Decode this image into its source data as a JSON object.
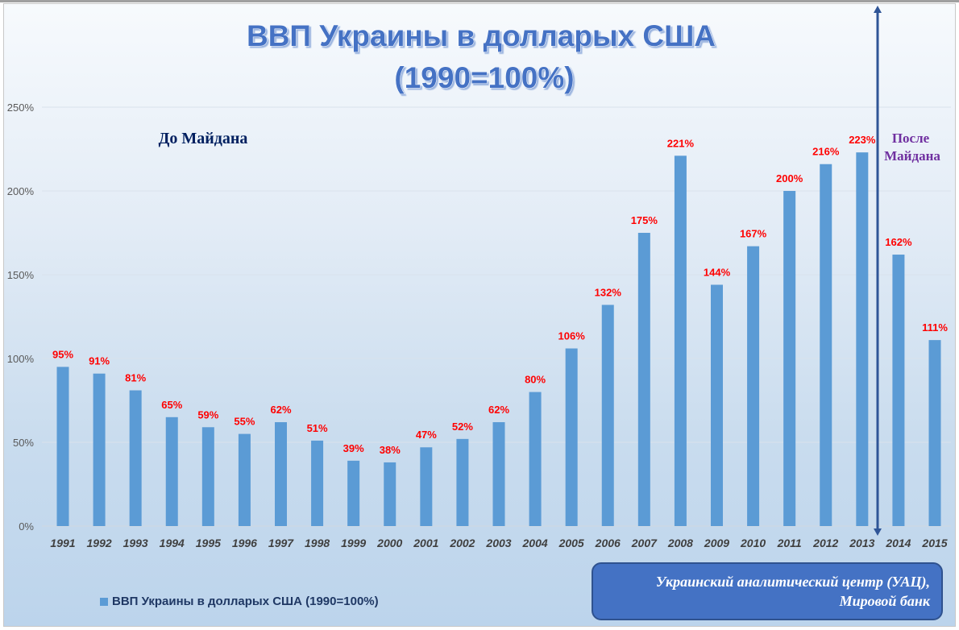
{
  "chart_data": {
    "type": "bar",
    "title": [
      "ВВП Украины в долларых США",
      "(1990=100%)"
    ],
    "categories": [
      "1991",
      "1992",
      "1993",
      "1994",
      "1995",
      "1996",
      "1997",
      "1998",
      "1999",
      "2000",
      "2001",
      "2002",
      "2003",
      "2004",
      "2005",
      "2006",
      "2007",
      "2008",
      "2009",
      "2010",
      "2011",
      "2012",
      "2013",
      "2014",
      "2015"
    ],
    "series": [
      {
        "name": "ВВП Украины в долларых США (1990=100%)",
        "values": [
          95,
          91,
          81,
          65,
          59,
          55,
          62,
          51,
          39,
          38,
          47,
          52,
          62,
          80,
          106,
          132,
          175,
          221,
          144,
          167,
          200,
          216,
          223,
          162,
          111
        ]
      }
    ],
    "data_labels": [
      "95%",
      "91%",
      "81%",
      "65%",
      "59%",
      "55%",
      "62%",
      "51%",
      "39%",
      "38%",
      "47%",
      "52%",
      "62%",
      "80%",
      "106%",
      "132%",
      "175%",
      "221%",
      "144%",
      "167%",
      "200%",
      "216%",
      "223%",
      "162%",
      "111%"
    ],
    "yticks": [
      "0%",
      "50%",
      "100%",
      "150%",
      "200%",
      "250%"
    ],
    "ylim": [
      0,
      250
    ],
    "grid": true,
    "legend_position": "bottom-left",
    "bar_color": "#5b9bd5",
    "label_color": "#ff0000",
    "annotations": {
      "before": "До Майдана",
      "after": [
        "После",
        "Майдана"
      ],
      "divider": "between 2013 and 2014"
    }
  },
  "source": [
    "Украинский аналитический центр (УАЦ),",
    "Мировой банк"
  ]
}
